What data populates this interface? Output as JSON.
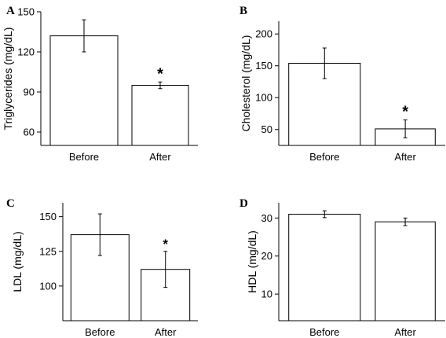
{
  "chart_data": [
    {
      "type": "bar",
      "panel": "A",
      "categories": [
        "Before",
        "After"
      ],
      "values": [
        132,
        95
      ],
      "errors": [
        12,
        2.5
      ],
      "annotations": [
        "",
        "*"
      ],
      "ylabel": "Triglycerides (mg/dL)",
      "ylim": [
        50,
        150
      ],
      "yticks": [
        "60",
        "90",
        "120",
        "150"
      ],
      "grid": false
    },
    {
      "type": "bar",
      "panel": "B",
      "categories": [
        "Before",
        "After"
      ],
      "values": [
        154,
        51
      ],
      "errors": [
        24,
        14
      ],
      "annotations": [
        "",
        "*"
      ],
      "ylabel": "Cholesterol (mg/dL)",
      "ylim": [
        25,
        220
      ],
      "yticks": [
        "50",
        "100",
        "150",
        "200"
      ],
      "grid": false
    },
    {
      "type": "bar",
      "panel": "C",
      "categories": [
        "Before",
        "After"
      ],
      "values": [
        137,
        112
      ],
      "errors": [
        15,
        13
      ],
      "annotations": [
        "",
        "*"
      ],
      "ylabel": "LDL (mg/dL)",
      "ylim": [
        75,
        160
      ],
      "yticks": [
        "100",
        "125",
        "150"
      ],
      "grid": false
    },
    {
      "type": "bar",
      "panel": "D",
      "categories": [
        "Before",
        "After"
      ],
      "values": [
        31,
        29
      ],
      "errors": [
        0.9,
        1.0
      ],
      "annotations": [
        "",
        ""
      ],
      "ylabel": "HDL (mg/dL)",
      "ylim": [
        3,
        34
      ],
      "yticks": [
        "10",
        "20",
        "30"
      ],
      "grid": false
    }
  ]
}
